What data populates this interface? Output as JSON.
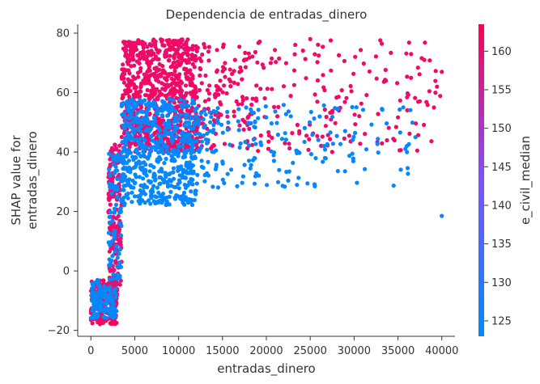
{
  "chart_data": {
    "type": "scatter",
    "title": "Dependencia de entradas_dinero",
    "xlabel": "entradas_dinero",
    "ylabel_lines": [
      "SHAP value for",
      "entradas_dinero"
    ],
    "xlim": [
      -1500,
      41500
    ],
    "ylim": [
      -22,
      83
    ],
    "xticks": [
      0,
      5000,
      10000,
      15000,
      20000,
      25000,
      30000,
      35000,
      40000
    ],
    "yticks": [
      -20,
      0,
      20,
      40,
      60,
      80
    ],
    "colorbar": {
      "label": "e_civil_median",
      "range": [
        123,
        163.5
      ],
      "ticks": [
        125,
        130,
        135,
        140,
        145,
        150,
        155,
        160
      ],
      "low_color": "#008afb",
      "mid_color": "#7c52ff",
      "high_color": "#ff0052"
    },
    "clusters": [
      {
        "x": [
          0,
          3000
        ],
        "y": [
          -18,
          -3
        ],
        "color_value": 162,
        "count": 200
      },
      {
        "x": [
          0,
          3000
        ],
        "y": [
          -16,
          -3
        ],
        "color_value": 124,
        "count": 140
      },
      {
        "x": [
          2000,
          3500
        ],
        "y": [
          -5,
          43
        ],
        "color_value": 160,
        "count": 180
      },
      {
        "x": [
          2000,
          3500
        ],
        "y": [
          -3,
          40
        ],
        "color_value": 124,
        "count": 90
      },
      {
        "x": [
          3500,
          12000
        ],
        "y": [
          40,
          78
        ],
        "color_value": 161,
        "count": 800
      },
      {
        "x": [
          3500,
          12000
        ],
        "y": [
          22,
          58
        ],
        "color_value": 124,
        "count": 600
      },
      {
        "x": [
          12000,
          40000
        ],
        "y": [
          40,
          78
        ],
        "color_value": 161,
        "count": 300
      },
      {
        "x": [
          12000,
          37000
        ],
        "y": [
          28,
          56
        ],
        "color_value": 124,
        "count": 200
      }
    ],
    "points": [
      {
        "x": 40000,
        "y": 18.5,
        "color_value": 124
      },
      {
        "x": 40000,
        "y": 67,
        "color_value": 161
      },
      {
        "x": 38000,
        "y": 71,
        "color_value": 161
      },
      {
        "x": 36500,
        "y": 73,
        "color_value": 161
      },
      {
        "x": 25000,
        "y": 78,
        "color_value": 161
      },
      {
        "x": 37000,
        "y": 45,
        "color_value": 124
      },
      {
        "x": 36000,
        "y": 42,
        "color_value": 124
      }
    ]
  }
}
